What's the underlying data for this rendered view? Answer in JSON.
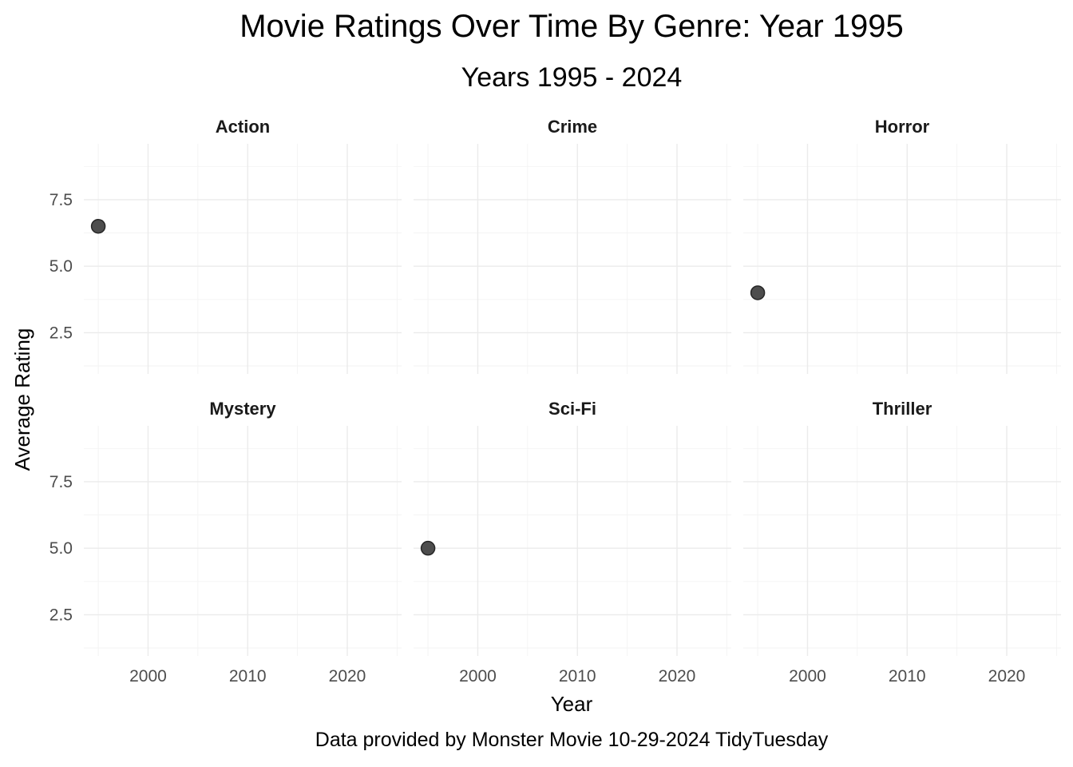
{
  "chart_data": {
    "type": "scatter",
    "title": "Movie Ratings Over Time By Genre: Year 1995",
    "subtitle": "Years 1995 - 2024",
    "xlabel": "Year",
    "ylabel": "Average Rating",
    "caption": "Data provided by Monster Movie 10-29-2024 TidyTuesday",
    "xlim": [
      1993.55,
      2025.45
    ],
    "ylim": [
      0.95,
      9.6
    ],
    "x_ticks": [
      2000,
      2010,
      2020
    ],
    "x_tick_labels": [
      "2000",
      "2010",
      "2020"
    ],
    "y_ticks": [
      2.5,
      5.0,
      7.5
    ],
    "y_tick_labels": [
      "2.5",
      "5.0",
      "7.5"
    ],
    "grid": true,
    "facet_layout": {
      "rows": 2,
      "cols": 3
    },
    "panels": [
      {
        "name": "Action",
        "points": [
          {
            "x": 1995,
            "y": 6.5
          }
        ]
      },
      {
        "name": "Crime",
        "points": []
      },
      {
        "name": "Horror",
        "points": [
          {
            "x": 1995,
            "y": 4.0
          }
        ]
      },
      {
        "name": "Mystery",
        "points": []
      },
      {
        "name": "Sci-Fi",
        "points": [
          {
            "x": 1995,
            "y": 5.0
          }
        ]
      },
      {
        "name": "Thriller",
        "points": []
      }
    ],
    "point_color": "#4d4d4d",
    "point_stroke": "#262626"
  }
}
